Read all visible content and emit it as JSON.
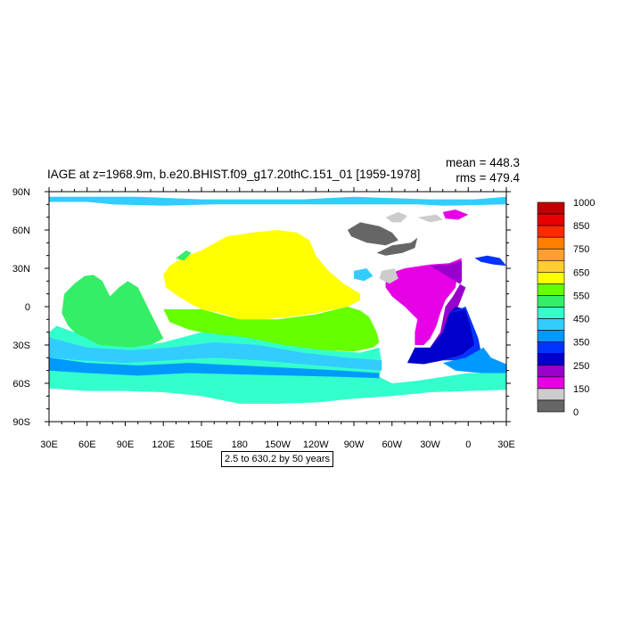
{
  "chart_data": {
    "type": "heatmap",
    "title": "IAGE at z=1968.9m, b.e20.BHIST.f09_g17.20thC.151_01 [1959-1978]",
    "stats": {
      "mean_label": "mean = 448.3",
      "rms_label": "rms = 479.4"
    },
    "lon_range": [
      30,
      390
    ],
    "lat_range": [
      -90,
      90
    ],
    "x_tick_labels": [
      "30E",
      "60E",
      "90E",
      "120E",
      "150E",
      "180",
      "150W",
      "120W",
      "90W",
      "60W",
      "30W",
      "0",
      "30E"
    ],
    "y_tick_labels": [
      "90N",
      "60N",
      "30N",
      "0",
      "30S",
      "60S",
      "90S"
    ],
    "colorbar": {
      "labels": [
        "1000",
        "850",
        "750",
        "650",
        "550",
        "450",
        "350",
        "250",
        "150",
        "0"
      ],
      "colors": [
        "#c00000",
        "#e60000",
        "#ff2a00",
        "#ff7f00",
        "#ff9e33",
        "#ffcc33",
        "#ffff00",
        "#66ff00",
        "#33ee66",
        "#33ffcc",
        "#33ccff",
        "#0099ff",
        "#0033ff",
        "#0000cc",
        "#9900cc",
        "#e600e6",
        "#cccccc",
        "#666666"
      ]
    },
    "contour_note": "2.5 to 630.2 by 50 years",
    "regions": [
      {
        "name": "Arctic",
        "fill": "#33ccff",
        "points": [
          [
            30,
            86
          ],
          [
            100,
            86
          ],
          [
            150,
            84
          ],
          [
            190,
            84
          ],
          [
            230,
            84
          ],
          [
            270,
            86
          ],
          [
            300,
            85
          ],
          [
            330,
            84
          ],
          [
            365,
            84
          ],
          [
            390,
            86
          ],
          [
            390,
            80
          ],
          [
            340,
            79
          ],
          [
            320,
            80
          ],
          [
            290,
            80
          ],
          [
            250,
            80
          ],
          [
            200,
            80
          ],
          [
            160,
            80
          ],
          [
            120,
            79
          ],
          [
            80,
            80
          ],
          [
            60,
            82
          ],
          [
            30,
            82
          ]
        ]
      },
      {
        "name": "Baffin",
        "fill": "#cccccc",
        "points": [
          [
            295,
            70
          ],
          [
            305,
            74
          ],
          [
            312,
            71
          ],
          [
            307,
            66
          ],
          [
            300,
            66
          ]
        ]
      },
      {
        "name": "Hudson",
        "fill": "#666666",
        "points": [
          [
            265,
            60
          ],
          [
            275,
            66
          ],
          [
            290,
            63
          ],
          [
            300,
            58
          ],
          [
            305,
            52
          ],
          [
            295,
            48
          ],
          [
            280,
            50
          ],
          [
            268,
            55
          ]
        ]
      },
      {
        "name": "GreenlandSea",
        "fill": "#e600e6",
        "points": [
          [
            340,
            74
          ],
          [
            350,
            76
          ],
          [
            360,
            72
          ],
          [
            352,
            68
          ],
          [
            342,
            69
          ]
        ]
      },
      {
        "name": "NordicGrey",
        "fill": "#cccccc",
        "points": [
          [
            320,
            70
          ],
          [
            335,
            72
          ],
          [
            340,
            68
          ],
          [
            330,
            66
          ]
        ]
      },
      {
        "name": "Labrador",
        "fill": "#666666",
        "points": [
          [
            288,
            42
          ],
          [
            300,
            48
          ],
          [
            315,
            50
          ],
          [
            320,
            54
          ],
          [
            318,
            46
          ],
          [
            308,
            42
          ],
          [
            295,
            40
          ]
        ]
      },
      {
        "name": "NAtlPurple",
        "fill": "#e600e6",
        "points": [
          [
            295,
            25
          ],
          [
            310,
            30
          ],
          [
            330,
            33
          ],
          [
            345,
            34
          ],
          [
            355,
            38
          ],
          [
            352,
            28
          ],
          [
            350,
            15
          ],
          [
            342,
            5
          ],
          [
            338,
            -5
          ],
          [
            335,
            -15
          ],
          [
            330,
            -25
          ],
          [
            325,
            -30
          ],
          [
            318,
            -30
          ],
          [
            318,
            -20
          ],
          [
            320,
            -10
          ],
          [
            310,
            0
          ],
          [
            300,
            8
          ],
          [
            295,
            15
          ]
        ]
      },
      {
        "name": "NAtlViolet",
        "fill": "#9900cc",
        "points": [
          [
            330,
            32
          ],
          [
            345,
            33
          ],
          [
            355,
            36
          ],
          [
            355,
            20
          ],
          [
            348,
            8
          ],
          [
            342,
            0
          ],
          [
            340,
            -10
          ],
          [
            338,
            -20
          ],
          [
            330,
            -32
          ],
          [
            335,
            -30
          ],
          [
            345,
            -15
          ],
          [
            352,
            0
          ],
          [
            358,
            15
          ]
        ]
      },
      {
        "name": "SAtlDeep",
        "fill": "#0000cc",
        "points": [
          [
            318,
            -32
          ],
          [
            330,
            -32
          ],
          [
            340,
            -20
          ],
          [
            345,
            -5
          ],
          [
            350,
            0
          ],
          [
            358,
            -2
          ],
          [
            362,
            -15
          ],
          [
            365,
            -30
          ],
          [
            355,
            -38
          ],
          [
            340,
            -42
          ],
          [
            325,
            -45
          ],
          [
            312,
            -44
          ]
        ]
      },
      {
        "name": "SAtlBlue",
        "fill": "#0033ff",
        "points": [
          [
            345,
            -5
          ],
          [
            358,
            0
          ],
          [
            362,
            -10
          ],
          [
            368,
            -25
          ],
          [
            370,
            -35
          ],
          [
            360,
            -40
          ],
          [
            350,
            -42
          ],
          [
            340,
            -42
          ],
          [
            355,
            -38
          ],
          [
            365,
            -30
          ],
          [
            362,
            -15
          ],
          [
            358,
            -2
          ]
        ]
      },
      {
        "name": "SAtlLight",
        "fill": "#0099ff",
        "points": [
          [
            340,
            -44
          ],
          [
            358,
            -40
          ],
          [
            372,
            -32
          ],
          [
            378,
            -40
          ],
          [
            390,
            -45
          ],
          [
            390,
            -52
          ],
          [
            370,
            -52
          ],
          [
            350,
            -50
          ]
        ]
      },
      {
        "name": "NPacificYellow",
        "fill": "#ffff00",
        "points": [
          [
            150,
            44
          ],
          [
            170,
            55
          ],
          [
            190,
            58
          ],
          [
            210,
            60
          ],
          [
            225,
            58
          ],
          [
            235,
            52
          ],
          [
            240,
            40
          ],
          [
            250,
            28
          ],
          [
            262,
            18
          ],
          [
            275,
            10
          ],
          [
            275,
            5
          ],
          [
            265,
            0
          ],
          [
            240,
            -5
          ],
          [
            220,
            -8
          ],
          [
            200,
            -10
          ],
          [
            180,
            -10
          ],
          [
            165,
            -5
          ],
          [
            150,
            -2
          ],
          [
            142,
            2
          ],
          [
            132,
            8
          ],
          [
            122,
            15
          ],
          [
            120,
            25
          ],
          [
            125,
            32
          ],
          [
            135,
            38
          ]
        ]
      },
      {
        "name": "PacificGreen",
        "fill": "#66ff00",
        "points": [
          [
            120,
            -2
          ],
          [
            150,
            -2
          ],
          [
            180,
            -10
          ],
          [
            210,
            -10
          ],
          [
            240,
            -6
          ],
          [
            265,
            0
          ],
          [
            275,
            -3
          ],
          [
            282,
            -8
          ],
          [
            288,
            -20
          ],
          [
            290,
            -28
          ],
          [
            285,
            -32
          ],
          [
            270,
            -35
          ],
          [
            240,
            -34
          ],
          [
            210,
            -30
          ],
          [
            185,
            -25
          ],
          [
            160,
            -22
          ],
          [
            140,
            -18
          ],
          [
            125,
            -12
          ]
        ]
      },
      {
        "name": "IndianGreen",
        "fill": "#33ee66",
        "points": [
          [
            42,
            10
          ],
          [
            50,
            18
          ],
          [
            58,
            24
          ],
          [
            65,
            25
          ],
          [
            72,
            20
          ],
          [
            78,
            8
          ],
          [
            85,
            15
          ],
          [
            92,
            20
          ],
          [
            100,
            15
          ],
          [
            105,
            5
          ],
          [
            110,
            -5
          ],
          [
            115,
            -15
          ],
          [
            120,
            -25
          ],
          [
            110,
            -30
          ],
          [
            95,
            -32
          ],
          [
            80,
            -32
          ],
          [
            65,
            -30
          ],
          [
            55,
            -25
          ],
          [
            45,
            -15
          ],
          [
            40,
            -5
          ]
        ]
      },
      {
        "name": "SouthCyan",
        "fill": "#33ffcc",
        "points": [
          [
            36,
            -15
          ],
          [
            50,
            -20
          ],
          [
            70,
            -30
          ],
          [
            95,
            -32
          ],
          [
            120,
            -28
          ],
          [
            150,
            -20
          ],
          [
            185,
            -24
          ],
          [
            215,
            -30
          ],
          [
            245,
            -34
          ],
          [
            275,
            -36
          ],
          [
            290,
            -32
          ],
          [
            292,
            -45
          ],
          [
            290,
            -55
          ],
          [
            300,
            -60
          ],
          [
            320,
            -58
          ],
          [
            340,
            -55
          ],
          [
            360,
            -52
          ],
          [
            390,
            -52
          ],
          [
            390,
            -65
          ],
          [
            360,
            -66
          ],
          [
            330,
            -67
          ],
          [
            300,
            -70
          ],
          [
            270,
            -72
          ],
          [
            240,
            -75
          ],
          [
            210,
            -76
          ],
          [
            180,
            -76
          ],
          [
            150,
            -70
          ],
          [
            120,
            -67
          ],
          [
            90,
            -66
          ],
          [
            60,
            -66
          ],
          [
            30,
            -64
          ],
          [
            30,
            -20
          ]
        ]
      },
      {
        "name": "SouthBlue",
        "fill": "#33ccff",
        "points": [
          [
            30,
            -24
          ],
          [
            60,
            -32
          ],
          [
            95,
            -34
          ],
          [
            125,
            -32
          ],
          [
            160,
            -28
          ],
          [
            195,
            -30
          ],
          [
            230,
            -36
          ],
          [
            265,
            -40
          ],
          [
            292,
            -42
          ],
          [
            292,
            -50
          ],
          [
            265,
            -48
          ],
          [
            230,
            -45
          ],
          [
            195,
            -42
          ],
          [
            160,
            -40
          ],
          [
            125,
            -42
          ],
          [
            90,
            -44
          ],
          [
            55,
            -42
          ],
          [
            30,
            -40
          ]
        ]
      },
      {
        "name": "SouthMid",
        "fill": "#0099ff",
        "points": [
          [
            30,
            -40
          ],
          [
            60,
            -44
          ],
          [
            100,
            -46
          ],
          [
            140,
            -44
          ],
          [
            180,
            -46
          ],
          [
            220,
            -48
          ],
          [
            260,
            -50
          ],
          [
            290,
            -52
          ],
          [
            290,
            -56
          ],
          [
            260,
            -55
          ],
          [
            220,
            -54
          ],
          [
            180,
            -53
          ],
          [
            140,
            -52
          ],
          [
            100,
            -54
          ],
          [
            60,
            -52
          ],
          [
            30,
            -50
          ]
        ]
      },
      {
        "name": "Mediterranean",
        "fill": "#0033ff",
        "points": [
          [
            365,
            38
          ],
          [
            375,
            40
          ],
          [
            385,
            38
          ],
          [
            390,
            32
          ],
          [
            380,
            33
          ],
          [
            370,
            35
          ]
        ]
      },
      {
        "name": "CaribbeanGrey",
        "fill": "#cccccc",
        "points": [
          [
            292,
            28
          ],
          [
            302,
            30
          ],
          [
            305,
            22
          ],
          [
            298,
            18
          ],
          [
            290,
            22
          ]
        ]
      },
      {
        "name": "GulfMexico",
        "fill": "#33ccff",
        "points": [
          [
            270,
            28
          ],
          [
            280,
            30
          ],
          [
            285,
            24
          ],
          [
            278,
            20
          ],
          [
            270,
            22
          ]
        ]
      },
      {
        "name": "JapanSea",
        "fill": "#33ee66",
        "points": [
          [
            130,
            38
          ],
          [
            138,
            44
          ],
          [
            142,
            42
          ],
          [
            136,
            36
          ]
        ]
      }
    ]
  }
}
